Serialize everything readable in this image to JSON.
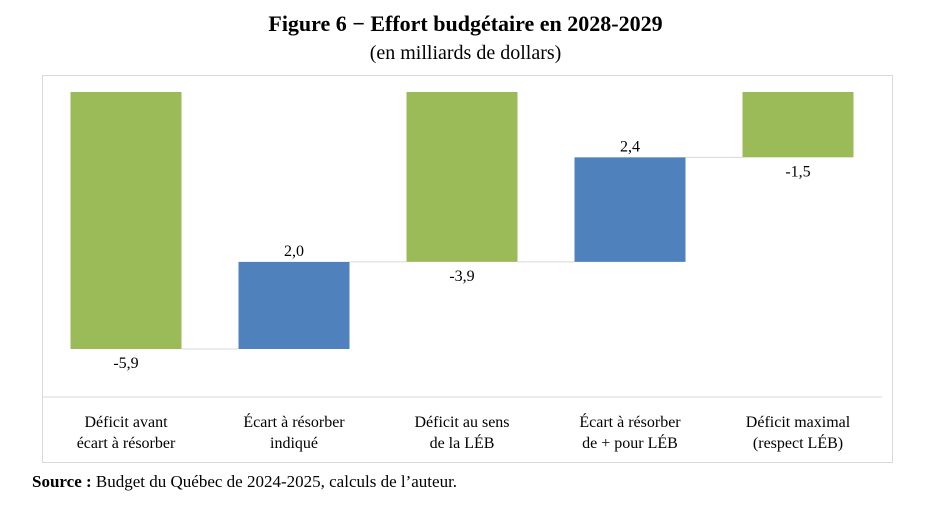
{
  "header": {
    "title": "Figure 6 − Effort budgétaire en 2028-2029",
    "subtitle": "(en milliards de dollars)"
  },
  "footer": {
    "source_label": "Source :",
    "source_text": " Budget du Québec de 2024-2025, calculs de l’auteur."
  },
  "colors": {
    "green": "#9bbb59",
    "blue": "#4f81bd",
    "connector": "#d9d9d9"
  },
  "chart_data": {
    "type": "bar",
    "subtype": "waterfall",
    "categories": [
      "Déficit avant écart à résorber",
      "Écart à résorber indiqué",
      "Déficit au sens de la LÉB",
      "Écart à résorber de + pour LÉB",
      "Déficit maximal (respect LÉB)"
    ],
    "category_lines": [
      [
        "Déficit avant",
        "écart à résorber"
      ],
      [
        "Écart à résorber",
        "indiqué"
      ],
      [
        "Déficit au sens",
        "de la LÉB"
      ],
      [
        "Écart à résorber",
        "de + pour LÉB"
      ],
      [
        "Déficit maximal",
        "(respect LÉB)"
      ]
    ],
    "values": [
      -5.9,
      2.0,
      -3.9,
      2.4,
      -1.5
    ],
    "value_labels": [
      "-5,9",
      "2,0",
      "-3,9",
      "2,4",
      "-1,5"
    ],
    "bar_kind": [
      "total",
      "delta",
      "total",
      "delta",
      "total"
    ],
    "bar_colors": [
      "green",
      "blue",
      "green",
      "blue",
      "green"
    ],
    "ylim": [
      -5.9,
      0
    ],
    "grid": false,
    "legend": "none"
  }
}
